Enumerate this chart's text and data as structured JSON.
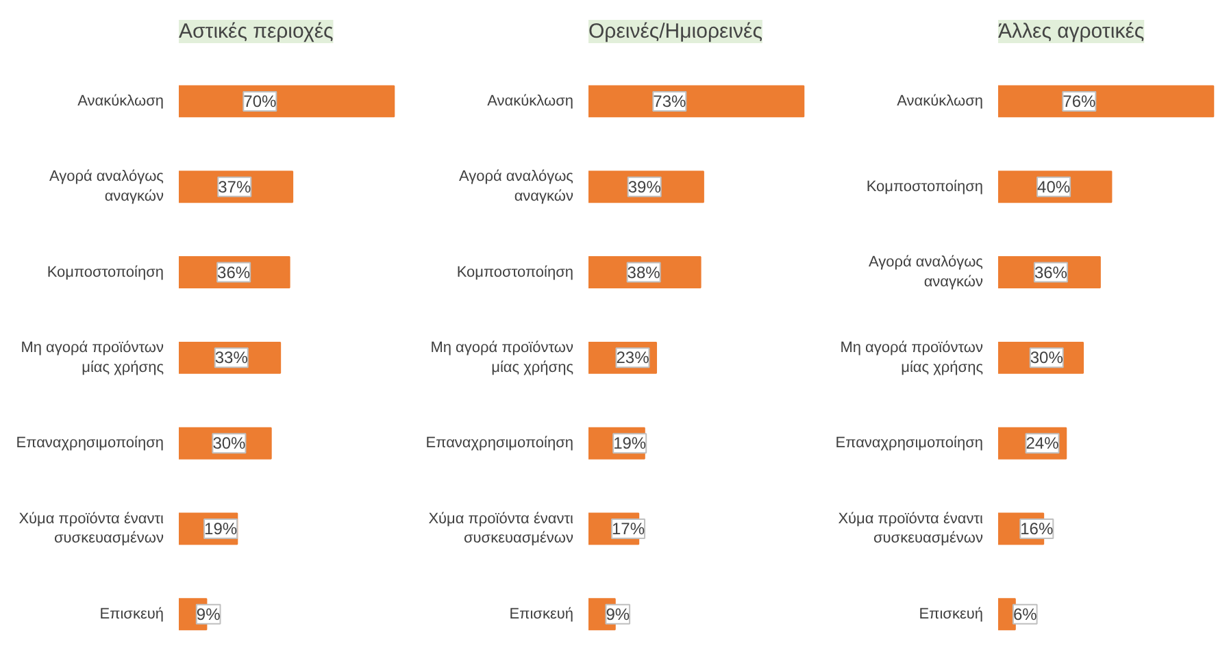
{
  "chart_data": [
    {
      "type": "bar",
      "orientation": "horizontal",
      "title": "Αστικές περιοχές",
      "color": "#ed7d31",
      "categories": [
        "Ανακύκλωση",
        "Αγορά αναλόγως αναγκών",
        "Κομποστοποίηση",
        "Μη αγορά προϊόντων μίας χρήσης",
        "Επαναχρησιμοποίηση",
        "Χύμα προϊόντα έναντι συσκευασμένων",
        "Επισκευή"
      ],
      "values": [
        70,
        37,
        36,
        33,
        30,
        19,
        9
      ],
      "value_labels": [
        "70%",
        "37%",
        "36%",
        "33%",
        "30%",
        "19%",
        "9%"
      ]
    },
    {
      "type": "bar",
      "orientation": "horizontal",
      "title": "Ορεινές/Ημιορεινές",
      "color": "#ed7d31",
      "categories": [
        "Ανακύκλωση",
        "Αγορά αναλόγως αναγκών",
        "Κομποστοποίηση",
        "Μη αγορά προϊόντων μίας χρήσης",
        "Επαναχρησιμοποίηση",
        "Χύμα προϊόντα έναντι συσκευασμένων",
        "Επισκευή"
      ],
      "values": [
        73,
        39,
        38,
        23,
        19,
        17,
        9
      ],
      "value_labels": [
        "73%",
        "39%",
        "38%",
        "23%",
        "19%",
        "17%",
        "9%"
      ]
    },
    {
      "type": "bar",
      "orientation": "horizontal",
      "title": "Άλλες αγροτικές",
      "color": "#ed7d31",
      "categories": [
        "Ανακύκλωση",
        "Κομποστοποίηση",
        "Αγορά αναλόγως αναγκών",
        "Μη αγορά προϊόντων μίας χρήσης",
        "Επαναχρησιμοποίηση",
        "Χύμα προϊόντα έναντι συσκευασμένων",
        "Επισκευή"
      ],
      "values": [
        76,
        40,
        36,
        30,
        24,
        16,
        6
      ],
      "value_labels": [
        "76%",
        "40%",
        "36%",
        "30%",
        "24%",
        "16%",
        "6%"
      ]
    }
  ]
}
